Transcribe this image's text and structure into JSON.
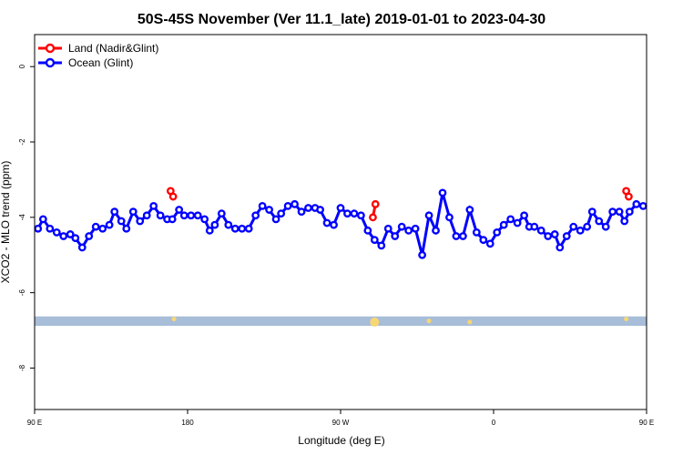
{
  "chart_data": {
    "type": "line",
    "title": "50S-45S November (Ver 11.1_late)   2019-01-01 to 2023-04-30",
    "xlabel": "Longitude (deg E)",
    "ylabel": "XCO2 - MLO trend (ppm)",
    "xlim": [
      90,
      450
    ],
    "ylim": [
      -9.1,
      0.85
    ],
    "x_ticks": [
      {
        "value": 90,
        "label": "90 E"
      },
      {
        "value": 180,
        "label": "180"
      },
      {
        "value": 270,
        "label": "90 W"
      },
      {
        "value": 360,
        "label": "0"
      },
      {
        "value": 450,
        "label": "90 E"
      },
      {
        "value": 540,
        "label": "180"
      }
    ],
    "y_ticks": [
      {
        "value": 0,
        "label": "0"
      },
      {
        "value": -2,
        "label": "-2"
      },
      {
        "value": -4,
        "label": "-4"
      },
      {
        "value": -6,
        "label": "-6"
      },
      {
        "value": -8,
        "label": "-8"
      }
    ],
    "legend_position": "top-left",
    "grid": false,
    "series": [
      {
        "name": "Land (Nadir&Glint)",
        "color": "#ff0000",
        "segments": [
          {
            "x": [
              170,
              171.5
            ],
            "y": [
              -3.3,
              -3.45
            ]
          },
          {
            "x": [
              289,
              290.5
            ],
            "y": [
              -4.0,
              -3.65
            ]
          },
          {
            "x": [
              438,
              439.5
            ],
            "y": [
              -3.3,
              -3.45
            ]
          }
        ]
      },
      {
        "name": "Ocean (Glint)",
        "color": "#0000ff",
        "x": [
          92,
          95,
          99,
          103,
          107,
          111,
          114,
          118,
          122,
          126,
          130,
          134,
          137,
          141,
          144,
          148,
          152,
          156,
          160,
          164,
          168,
          171,
          175,
          178,
          182,
          186,
          190,
          193,
          196,
          200,
          204,
          208,
          212,
          216,
          220,
          224,
          228,
          232,
          235,
          239,
          243,
          247,
          251,
          255,
          258,
          262,
          266,
          270,
          274,
          278,
          282,
          286,
          290,
          294,
          298,
          302,
          306,
          310,
          314,
          318,
          322,
          326,
          330,
          334,
          338,
          342,
          346,
          350,
          354,
          358,
          362,
          366,
          370,
          374,
          378,
          381,
          384,
          388,
          392,
          396,
          399,
          403,
          407,
          411,
          415,
          418,
          422,
          426,
          430,
          434,
          437,
          440,
          444,
          448
        ],
        "y": [
          -4.3,
          -4.05,
          -4.3,
          -4.4,
          -4.5,
          -4.45,
          -4.55,
          -4.8,
          -4.5,
          -4.25,
          -4.3,
          -4.2,
          -3.85,
          -4.1,
          -4.3,
          -3.85,
          -4.1,
          -3.95,
          -3.7,
          -3.95,
          -4.05,
          -4.05,
          -3.8,
          -3.95,
          -3.95,
          -3.95,
          -4.05,
          -4.35,
          -4.2,
          -3.9,
          -4.2,
          -4.3,
          -4.3,
          -4.3,
          -3.95,
          -3.7,
          -3.8,
          -4.05,
          -3.9,
          -3.7,
          -3.65,
          -3.85,
          -3.75,
          -3.75,
          -3.8,
          -4.15,
          -4.2,
          -3.75,
          -3.9,
          -3.9,
          -3.95,
          -4.35,
          -4.6,
          -4.75,
          -4.3,
          -4.5,
          -4.25,
          -4.35,
          -4.3,
          -5.0,
          -3.95,
          -4.35,
          -3.35,
          -4.0,
          -4.5,
          -4.5,
          -3.8,
          -4.4,
          -4.6,
          -4.7,
          -4.4,
          -4.2,
          -4.05,
          -4.15,
          -3.95,
          -4.25,
          -4.25,
          -4.35,
          -4.5,
          -4.45,
          -4.8,
          -4.5,
          -4.25,
          -4.35,
          -4.25,
          -3.85,
          -4.1,
          -4.25,
          -3.85,
          -3.85,
          -4.1,
          -3.85,
          -3.65,
          -3.7
        ]
      }
    ],
    "band": {
      "y_from": -6.63,
      "y_to": -6.88,
      "color": "#a7bdd8"
    },
    "markers": [
      {
        "x": 172,
        "y": -6.7,
        "color": "#f7d774"
      },
      {
        "x": 290,
        "y": -6.78,
        "color": "#f7d774"
      },
      {
        "x": 322,
        "y": -6.75,
        "color": "#f7d774"
      },
      {
        "x": 346,
        "y": -6.78,
        "color": "#f7d774"
      },
      {
        "x": 438,
        "y": -6.7,
        "color": "#f7d774"
      }
    ]
  }
}
